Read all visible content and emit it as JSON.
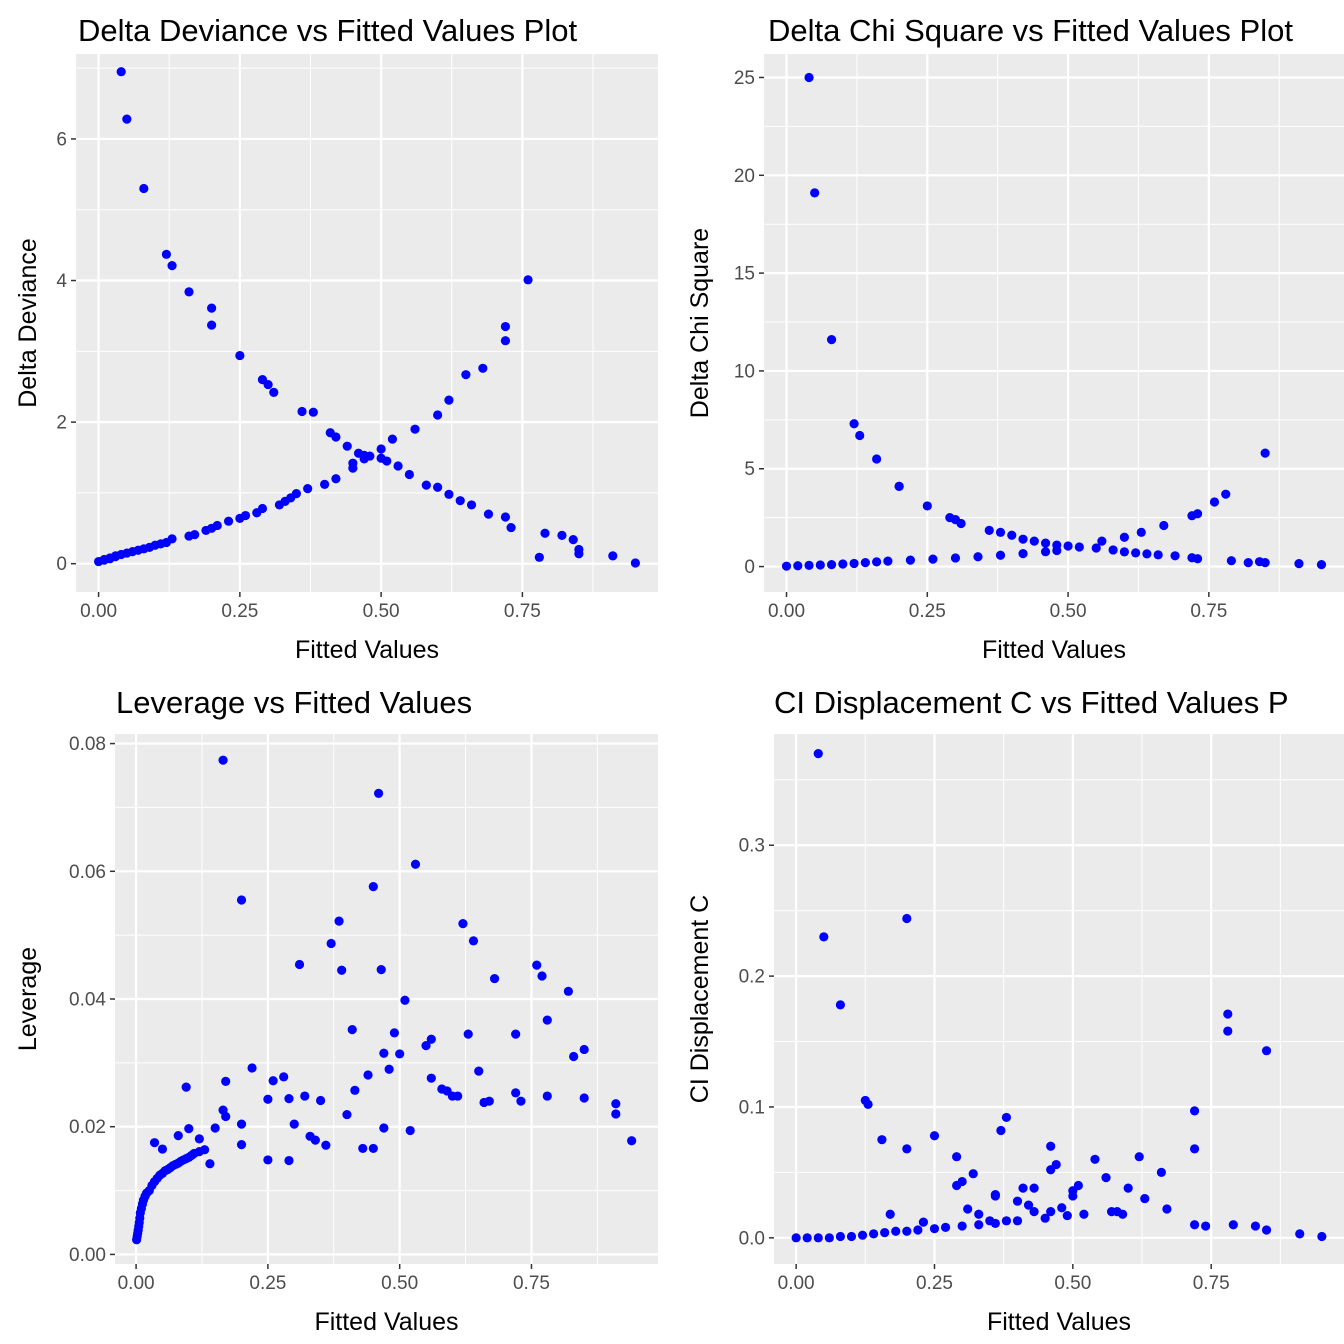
{
  "chart_data": [
    {
      "type": "scatter",
      "title": "Delta Deviance vs Fitted Values Plot",
      "xlabel": "Fitted Values",
      "ylabel": "Delta Deviance",
      "xlim": [
        -0.04,
        0.99
      ],
      "ylim": [
        -0.4,
        7.2
      ],
      "xticks": [
        0,
        0.25,
        0.5,
        0.75
      ],
      "xtick_labels": [
        "0.00",
        "0.25",
        "0.50",
        "0.75"
      ],
      "yticks": [
        0,
        2,
        4,
        6
      ],
      "ytick_labels": [
        "0",
        "2",
        "4",
        "6"
      ],
      "grid": true,
      "point_color": "#0000ff",
      "panel_bg": "#ebebeb",
      "x": [
        0.04,
        0.05,
        0.08,
        0.12,
        0.13,
        0.16,
        0.2,
        0.2,
        0.25,
        0.29,
        0.3,
        0.31,
        0.36,
        0.38,
        0.41,
        0.42,
        0.44,
        0.46,
        0.48,
        0.5,
        0.51,
        0.53,
        0.55,
        0.58,
        0.6,
        0.62,
        0.64,
        0.66,
        0.69,
        0.72,
        0.73,
        0.79,
        0.82,
        0.84,
        0.85,
        0.91,
        0.95,
        0.0,
        0.01,
        0.01,
        0.02,
        0.02,
        0.03,
        0.03,
        0.04,
        0.05,
        0.06,
        0.07,
        0.08,
        0.09,
        0.1,
        0.11,
        0.12,
        0.13,
        0.16,
        0.17,
        0.19,
        0.2,
        0.21,
        0.23,
        0.25,
        0.26,
        0.28,
        0.29,
        0.32,
        0.33,
        0.34,
        0.35,
        0.37,
        0.4,
        0.42,
        0.45,
        0.45,
        0.47,
        0.47,
        0.5,
        0.52,
        0.56,
        0.6,
        0.62,
        0.65,
        0.68,
        0.72,
        0.72,
        0.76,
        0.78,
        0.85
      ],
      "y": [
        6.95,
        6.28,
        5.3,
        4.37,
        4.21,
        3.84,
        3.61,
        3.37,
        2.94,
        2.6,
        2.53,
        2.42,
        2.15,
        2.14,
        1.85,
        1.79,
        1.66,
        1.56,
        1.52,
        1.49,
        1.45,
        1.38,
        1.26,
        1.11,
        1.08,
        0.98,
        0.89,
        0.83,
        0.7,
        0.66,
        0.51,
        0.43,
        0.4,
        0.34,
        0.2,
        0.11,
        0.01,
        0.03,
        0.05,
        0.06,
        0.07,
        0.08,
        0.1,
        0.11,
        0.13,
        0.15,
        0.17,
        0.19,
        0.21,
        0.23,
        0.26,
        0.28,
        0.3,
        0.35,
        0.39,
        0.41,
        0.47,
        0.5,
        0.54,
        0.6,
        0.64,
        0.68,
        0.72,
        0.78,
        0.83,
        0.88,
        0.93,
        0.99,
        1.06,
        1.12,
        1.2,
        1.35,
        1.42,
        1.48,
        1.53,
        1.62,
        1.76,
        1.9,
        2.1,
        2.31,
        2.67,
        2.76,
        3.15,
        3.35,
        4.01,
        0.09,
        0.14
      ]
    },
    {
      "type": "scatter",
      "title": "Delta Chi Square vs Fitted Values Plot",
      "xlabel": "Fitted Values",
      "ylabel": "Delta Chi Square",
      "xlim": [
        -0.04,
        0.99
      ],
      "ylim": [
        -1.3,
        26.2
      ],
      "xticks": [
        0,
        0.25,
        0.5,
        0.75
      ],
      "xtick_labels": [
        "0.00",
        "0.25",
        "0.50",
        "0.75"
      ],
      "yticks": [
        0,
        5,
        10,
        15,
        20,
        25
      ],
      "ytick_labels": [
        "0",
        "5",
        "10",
        "15",
        "20",
        "25"
      ],
      "grid": true,
      "point_color": "#0000ff",
      "panel_bg": "#ebebeb",
      "x": [
        0.04,
        0.05,
        0.08,
        0.12,
        0.13,
        0.16,
        0.2,
        0.2,
        0.25,
        0.29,
        0.3,
        0.31,
        0.36,
        0.38,
        0.4,
        0.42,
        0.44,
        0.46,
        0.48,
        0.5,
        0.52,
        0.55,
        0.58,
        0.6,
        0.62,
        0.64,
        0.66,
        0.69,
        0.72,
        0.73,
        0.79,
        0.82,
        0.84,
        0.85,
        0.91,
        0.95,
        0.0,
        0.02,
        0.04,
        0.06,
        0.08,
        0.1,
        0.12,
        0.14,
        0.16,
        0.18,
        0.22,
        0.26,
        0.3,
        0.34,
        0.38,
        0.42,
        0.46,
        0.48,
        0.56,
        0.6,
        0.63,
        0.67,
        0.72,
        0.73,
        0.76,
        0.78,
        0.85
      ],
      "y": [
        25.0,
        19.1,
        11.6,
        7.3,
        6.7,
        5.5,
        4.1,
        4.1,
        3.1,
        2.5,
        2.4,
        2.2,
        1.85,
        1.75,
        1.6,
        1.4,
        1.3,
        1.2,
        1.1,
        1.05,
        1.0,
        0.95,
        0.85,
        0.75,
        0.7,
        0.65,
        0.6,
        0.55,
        0.45,
        0.4,
        0.3,
        0.2,
        0.25,
        0.2,
        0.15,
        0.1,
        0.02,
        0.04,
        0.06,
        0.08,
        0.1,
        0.13,
        0.16,
        0.2,
        0.24,
        0.28,
        0.33,
        0.38,
        0.44,
        0.5,
        0.58,
        0.66,
        0.76,
        0.82,
        1.3,
        1.5,
        1.75,
        2.1,
        2.6,
        2.7,
        3.3,
        3.7,
        5.8
      ]
    },
    {
      "type": "scatter",
      "title": "Leverage vs Fitted Values",
      "xlabel": "Fitted Values",
      "ylabel": "Leverage",
      "xlim": [
        -0.04,
        0.99
      ],
      "ylim": [
        -0.0015,
        0.0815
      ],
      "xticks": [
        0,
        0.25,
        0.5,
        0.75
      ],
      "xtick_labels": [
        "0.00",
        "0.25",
        "0.50",
        "0.75"
      ],
      "yticks": [
        0,
        0.02,
        0.04,
        0.06,
        0.08
      ],
      "ytick_labels": [
        "0.00",
        "0.02",
        "0.04",
        "0.06",
        "0.08"
      ],
      "grid": true,
      "point_color": "#0000ff",
      "panel_bg": "#ebebeb",
      "x": [
        0.001,
        0.002,
        0.003,
        0.004,
        0.005,
        0.006,
        0.007,
        0.008,
        0.01,
        0.012,
        0.014,
        0.017,
        0.02,
        0.025,
        0.03,
        0.035,
        0.04,
        0.045,
        0.05,
        0.055,
        0.06,
        0.065,
        0.07,
        0.075,
        0.08,
        0.085,
        0.09,
        0.095,
        0.1,
        0.105,
        0.11,
        0.12,
        0.13,
        0.035,
        0.05,
        0.08,
        0.095,
        0.1,
        0.12,
        0.14,
        0.15,
        0.165,
        0.17,
        0.2,
        0.165,
        0.2,
        0.22,
        0.25,
        0.26,
        0.28,
        0.29,
        0.31,
        0.32,
        0.34,
        0.35,
        0.37,
        0.385,
        0.39,
        0.41,
        0.415,
        0.44,
        0.45,
        0.46,
        0.465,
        0.47,
        0.48,
        0.49,
        0.5,
        0.51,
        0.53,
        0.55,
        0.56,
        0.58,
        0.6,
        0.62,
        0.63,
        0.64,
        0.65,
        0.67,
        0.68,
        0.72,
        0.73,
        0.76,
        0.77,
        0.78,
        0.82,
        0.83,
        0.85,
        0.91,
        0.94,
        0.17,
        0.2,
        0.25,
        0.29,
        0.3,
        0.33,
        0.36,
        0.4,
        0.43,
        0.45,
        0.47,
        0.52,
        0.56,
        0.59,
        0.61,
        0.66,
        0.72,
        0.78,
        0.85,
        0.91
      ],
      "y": [
        0.0023,
        0.0028,
        0.0033,
        0.0038,
        0.0044,
        0.005,
        0.0057,
        0.0065,
        0.0072,
        0.0079,
        0.0085,
        0.0091,
        0.0096,
        0.01,
        0.0108,
        0.0114,
        0.0119,
        0.0124,
        0.0127,
        0.0131,
        0.0133,
        0.0136,
        0.0139,
        0.0141,
        0.0143,
        0.0146,
        0.0148,
        0.015,
        0.0152,
        0.0155,
        0.0158,
        0.0161,
        0.0164,
        0.0175,
        0.0165,
        0.0186,
        0.0262,
        0.0197,
        0.0181,
        0.0142,
        0.0198,
        0.0226,
        0.0271,
        0.0555,
        0.0774,
        0.0204,
        0.0292,
        0.0243,
        0.0272,
        0.0278,
        0.0244,
        0.0454,
        0.0248,
        0.0179,
        0.0241,
        0.0487,
        0.0522,
        0.0445,
        0.0352,
        0.0257,
        0.0281,
        0.0576,
        0.0722,
        0.0446,
        0.0315,
        0.029,
        0.0347,
        0.0314,
        0.0398,
        0.0611,
        0.0327,
        0.0337,
        0.0259,
        0.0248,
        0.0518,
        0.0345,
        0.0491,
        0.0287,
        0.024,
        0.0432,
        0.0345,
        0.024,
        0.0453,
        0.0436,
        0.0367,
        0.0412,
        0.031,
        0.0321,
        0.0236,
        0.0178,
        0.0216,
        0.0172,
        0.0148,
        0.0147,
        0.0204,
        0.0185,
        0.0171,
        0.0219,
        0.0166,
        0.0166,
        0.0198,
        0.0194,
        0.0276,
        0.0256,
        0.0248,
        0.0238,
        0.0253,
        0.0248,
        0.0245,
        0.022
      ]
    },
    {
      "type": "scatter",
      "title": "CI Displacement C vs Fitted Values P",
      "xlabel": "Fitted Values",
      "ylabel": "CI Displacement C",
      "xlim": [
        -0.04,
        0.99
      ],
      "ylim": [
        -0.02,
        0.385
      ],
      "xticks": [
        0,
        0.25,
        0.5,
        0.75
      ],
      "xtick_labels": [
        "0.00",
        "0.25",
        "0.50",
        "0.75"
      ],
      "yticks": [
        0,
        0.1,
        0.2,
        0.3
      ],
      "ytick_labels": [
        "0.0",
        "0.1",
        "0.2",
        "0.3"
      ],
      "grid": true,
      "point_color": "#0000ff",
      "panel_bg": "#ebebeb",
      "x": [
        0.04,
        0.05,
        0.08,
        0.125,
        0.13,
        0.155,
        0.2,
        0.2,
        0.25,
        0.29,
        0.3,
        0.32,
        0.36,
        0.37,
        0.38,
        0.41,
        0.42,
        0.43,
        0.46,
        0.47,
        0.5,
        0.51,
        0.54,
        0.56,
        0.58,
        0.6,
        0.62,
        0.63,
        0.66,
        0.72,
        0.72,
        0.78,
        0.78,
        0.85,
        0.29,
        0.31,
        0.33,
        0.35,
        0.36,
        0.38,
        0.4,
        0.43,
        0.46,
        0.48,
        0.5,
        0.52,
        0.57,
        0.59,
        0.67,
        0.0,
        0.02,
        0.04,
        0.06,
        0.08,
        0.1,
        0.12,
        0.14,
        0.16,
        0.18,
        0.2,
        0.22,
        0.25,
        0.27,
        0.3,
        0.33,
        0.36,
        0.4,
        0.45,
        0.49,
        0.72,
        0.74,
        0.79,
        0.83,
        0.85,
        0.91,
        0.95,
        0.17,
        0.23,
        0.46
      ],
      "y": [
        0.37,
        0.23,
        0.178,
        0.105,
        0.102,
        0.075,
        0.068,
        0.244,
        0.078,
        0.062,
        0.043,
        0.049,
        0.033,
        0.082,
        0.092,
        0.038,
        0.025,
        0.038,
        0.07,
        0.056,
        0.036,
        0.04,
        0.06,
        0.046,
        0.02,
        0.038,
        0.062,
        0.03,
        0.05,
        0.097,
        0.068,
        0.158,
        0.171,
        0.143,
        0.04,
        0.022,
        0.018,
        0.013,
        0.032,
        0.013,
        0.028,
        0.02,
        0.052,
        0.023,
        0.032,
        0.018,
        0.02,
        0.018,
        0.022,
        0.0,
        0.0,
        0.0,
        0.0,
        0.001,
        0.001,
        0.002,
        0.003,
        0.004,
        0.005,
        0.005,
        0.006,
        0.007,
        0.008,
        0.009,
        0.01,
        0.011,
        0.013,
        0.015,
        0.017,
        0.01,
        0.009,
        0.01,
        0.009,
        0.006,
        0.003,
        0.001,
        0.018,
        0.012,
        0.02
      ]
    }
  ]
}
